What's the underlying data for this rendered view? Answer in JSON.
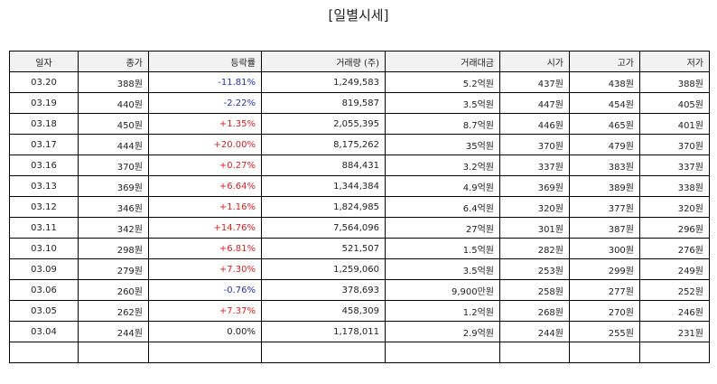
{
  "title": "[일별시세]",
  "columns": [
    "일자",
    "종가",
    "등락률",
    "거래량 (주)",
    "거래대금",
    "시가",
    "고가",
    "저가"
  ],
  "rows": [
    {
      "date": "03.20",
      "close": "388원",
      "change": "-11.81%",
      "dir": "down",
      "volume": "1,249,583",
      "amount": "5.2억원",
      "open": "437원",
      "high": "438원",
      "low": "388원"
    },
    {
      "date": "03.19",
      "close": "440원",
      "change": "-2.22%",
      "dir": "down",
      "volume": "819,587",
      "amount": "3.5억원",
      "open": "447원",
      "high": "454원",
      "low": "405원"
    },
    {
      "date": "03.18",
      "close": "450원",
      "change": "+1.35%",
      "dir": "up",
      "volume": "2,055,395",
      "amount": "8.7억원",
      "open": "446원",
      "high": "465원",
      "low": "401원"
    },
    {
      "date": "03.17",
      "close": "444원",
      "change": "+20.00%",
      "dir": "up",
      "volume": "8,175,262",
      "amount": "35억원",
      "open": "370원",
      "high": "479원",
      "low": "370원"
    },
    {
      "date": "03.16",
      "close": "370원",
      "change": "+0.27%",
      "dir": "up",
      "volume": "884,431",
      "amount": "3.2억원",
      "open": "337원",
      "high": "383원",
      "low": "337원"
    },
    {
      "date": "03.13",
      "close": "369원",
      "change": "+6.64%",
      "dir": "up",
      "volume": "1,344,384",
      "amount": "4.9억원",
      "open": "369원",
      "high": "389원",
      "low": "338원"
    },
    {
      "date": "03.12",
      "close": "346원",
      "change": "+1.16%",
      "dir": "up",
      "volume": "1,824,985",
      "amount": "6.4억원",
      "open": "320원",
      "high": "377원",
      "low": "320원"
    },
    {
      "date": "03.11",
      "close": "342원",
      "change": "+14.76%",
      "dir": "up",
      "volume": "7,564,096",
      "amount": "27억원",
      "open": "301원",
      "high": "387원",
      "low": "296원"
    },
    {
      "date": "03.10",
      "close": "298원",
      "change": "+6.81%",
      "dir": "up",
      "volume": "521,507",
      "amount": "1.5억원",
      "open": "282원",
      "high": "300원",
      "low": "276원"
    },
    {
      "date": "03.09",
      "close": "279원",
      "change": "+7.30%",
      "dir": "up",
      "volume": "1,259,060",
      "amount": "3.5억원",
      "open": "253원",
      "high": "299원",
      "low": "249원"
    },
    {
      "date": "03.06",
      "close": "260원",
      "change": "-0.76%",
      "dir": "down",
      "volume": "378,693",
      "amount": "9,900만원",
      "open": "258원",
      "high": "277원",
      "low": "252원"
    },
    {
      "date": "03.05",
      "close": "262원",
      "change": "+7.37%",
      "dir": "up",
      "volume": "458,309",
      "amount": "1.2억원",
      "open": "268원",
      "high": "270원",
      "low": "246원"
    },
    {
      "date": "03.04",
      "close": "244원",
      "change": "0.00%",
      "dir": "flat",
      "volume": "1,178,011",
      "amount": "2.9억원",
      "open": "244원",
      "high": "255원",
      "low": "231원"
    }
  ],
  "colors": {
    "up": "#e02020",
    "down": "#2233bb",
    "flat": "#222222",
    "header_bg": "#f2f2f2",
    "border": "#000000"
  }
}
